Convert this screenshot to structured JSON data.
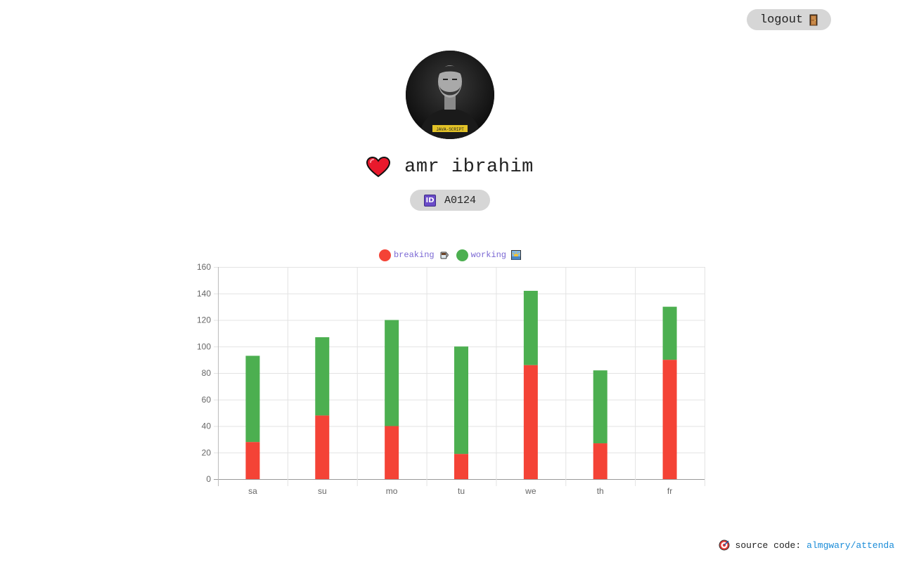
{
  "header": {
    "logout_label": "logout",
    "logout_icon": "door-icon"
  },
  "profile": {
    "avatar_icon": "avatar-photo",
    "name": "amr ibrahim",
    "name_icon": "heart-icon",
    "id_icon": "id-icon",
    "id_icon_text": "ID",
    "id_value": "A0124"
  },
  "legend": {
    "items": [
      {
        "label": "breaking",
        "color": "#f44336",
        "icon": "coffee-icon"
      },
      {
        "label": "working",
        "color": "#4caf50",
        "icon": "sunrise-icon"
      }
    ]
  },
  "chart_data": {
    "type": "bar",
    "stacked": true,
    "categories": [
      "sa",
      "su",
      "mo",
      "tu",
      "we",
      "th",
      "fr"
    ],
    "series": [
      {
        "name": "breaking",
        "color": "#f44336",
        "values": [
          28,
          48,
          40,
          19,
          86,
          27,
          90
        ]
      },
      {
        "name": "working",
        "color": "#4caf50",
        "values": [
          65,
          59,
          80,
          81,
          56,
          55,
          40
        ]
      }
    ],
    "ylim": [
      0,
      160
    ],
    "yticks": [
      0,
      20,
      40,
      60,
      80,
      100,
      120,
      140,
      160
    ],
    "grid": true,
    "legend_position": "top"
  },
  "footer": {
    "icon": "target-icon",
    "label": "source code:",
    "link_text": "almgwary/attenda"
  }
}
